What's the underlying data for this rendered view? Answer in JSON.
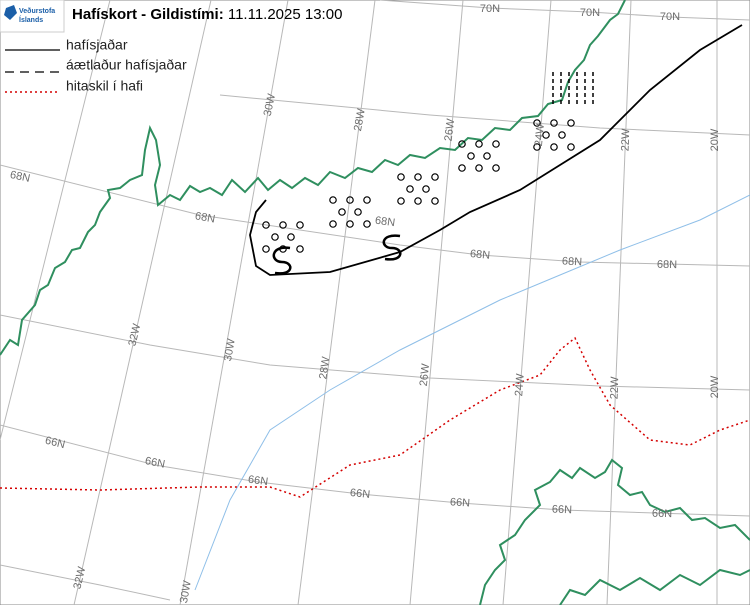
{
  "header": {
    "logo_line1": "Veðurstofa",
    "logo_line2": "Íslands",
    "title": "Hafískort - Gildistími:",
    "valid_time": "11.11.2025 13:00"
  },
  "legend": [
    {
      "label": "hafísjaðar"
    },
    {
      "label": "áætlaður hafísjaðar"
    },
    {
      "label": "hitaskil í hafi"
    }
  ],
  "map": {
    "grid_labels": [
      "70N",
      "70N",
      "70N",
      "30W",
      "28W",
      "26W",
      "24W",
      "22W",
      "20W",
      "68N",
      "68N",
      "68N",
      "68N",
      "68N",
      "68N",
      "32W",
      "30W",
      "28W",
      "26W",
      "24W",
      "22W",
      "20W",
      "66N",
      "66N",
      "66N",
      "66N",
      "66N",
      "66N",
      "66N",
      "32W",
      "30W"
    ]
  }
}
